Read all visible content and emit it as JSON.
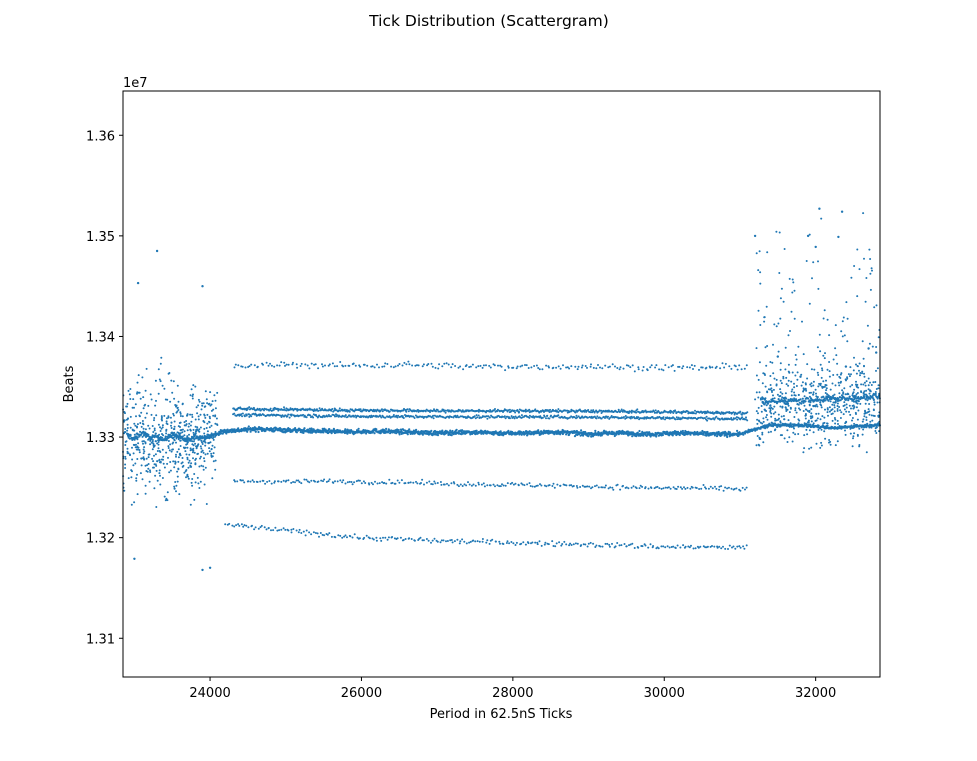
{
  "chart_data": {
    "type": "scatter",
    "title": "Tick Distribution (Scattergram)",
    "xlabel": "Period in 62.5nS Ticks",
    "ylabel": "Beats",
    "y_offset_label": "1e7",
    "xlim": [
      22850,
      32850
    ],
    "ylim": [
      13061500,
      13644000
    ],
    "x_ticks": [
      {
        "value": 24000,
        "label": "24000"
      },
      {
        "value": 26000,
        "label": "26000"
      },
      {
        "value": 28000,
        "label": "28000"
      },
      {
        "value": 30000,
        "label": "30000"
      },
      {
        "value": 32000,
        "label": "32000"
      }
    ],
    "y_ticks": [
      {
        "value": 13100000,
        "label": "1.31"
      },
      {
        "value": 13200000,
        "label": "1.32"
      },
      {
        "value": 13300000,
        "label": "1.33"
      },
      {
        "value": 13400000,
        "label": "1.34"
      },
      {
        "value": 13500000,
        "label": "1.35"
      },
      {
        "value": 13600000,
        "label": "1.36"
      }
    ],
    "marker_color": "#1f77b4",
    "grid": false,
    "series": [
      {
        "values_note_omitted": "",
        "points": [
          [
            22900,
            13302000
          ],
          [
            23000,
            13298000
          ],
          [
            23100,
            13305000
          ],
          [
            23200,
            13299000
          ],
          [
            23300,
            13301000
          ],
          [
            23400,
            13297000
          ],
          [
            23500,
            13303000
          ],
          [
            23600,
            13300000
          ],
          [
            23700,
            13296000
          ],
          [
            23800,
            13302000
          ],
          [
            23900,
            13298000
          ],
          [
            24000,
            13301000
          ],
          [
            24200,
            13306000
          ],
          [
            24600,
            13308000
          ],
          [
            25000,
            13307000
          ],
          [
            25400,
            13306000
          ],
          [
            25800,
            13305000
          ],
          [
            26200,
            13306000
          ],
          [
            26600,
            13305000
          ],
          [
            27000,
            13304000
          ],
          [
            27400,
            13305000
          ],
          [
            27800,
            13304000
          ],
          [
            28200,
            13304000
          ],
          [
            28600,
            13305000
          ],
          [
            29000,
            13303000
          ],
          [
            29400,
            13304000
          ],
          [
            29800,
            13303000
          ],
          [
            30200,
            13304000
          ],
          [
            30600,
            13303000
          ],
          [
            31000,
            13303000
          ],
          [
            31400,
            13312000
          ],
          [
            31800,
            13312000
          ],
          [
            32200,
            13309000
          ],
          [
            32600,
            13311000
          ],
          [
            32850,
            13312000
          ],
          [
            24300,
            13370000
          ],
          [
            25000,
            13372000
          ],
          [
            25800,
            13371000
          ],
          [
            26600,
            13372000
          ],
          [
            27400,
            13370000
          ],
          [
            28200,
            13370000
          ],
          [
            29000,
            13370000
          ],
          [
            29800,
            13369000
          ],
          [
            30600,
            13369000
          ],
          [
            31100,
            13370000
          ],
          [
            24300,
            13328000
          ],
          [
            25500,
            13327000
          ],
          [
            27000,
            13326000
          ],
          [
            28500,
            13326000
          ],
          [
            30000,
            13325000
          ],
          [
            31100,
            13324000
          ],
          [
            24300,
            13322000
          ],
          [
            25500,
            13321000
          ],
          [
            27000,
            13320000
          ],
          [
            28500,
            13320000
          ],
          [
            30000,
            13319000
          ],
          [
            31100,
            13318000
          ],
          [
            24300,
            13256000
          ],
          [
            25500,
            13256000
          ],
          [
            26500,
            13255000
          ],
          [
            27500,
            13253000
          ],
          [
            28500,
            13252000
          ],
          [
            29500,
            13250000
          ],
          [
            30500,
            13249000
          ],
          [
            31100,
            13248000
          ],
          [
            24200,
            13213000
          ],
          [
            25000,
            13207000
          ],
          [
            26000,
            13200000
          ],
          [
            27000,
            13197000
          ],
          [
            28000,
            13195000
          ],
          [
            29000,
            13193000
          ],
          [
            30000,
            13191000
          ],
          [
            31100,
            13190000
          ],
          [
            23300,
            13485000
          ],
          [
            23050,
            13453000
          ],
          [
            23900,
            13450000
          ],
          [
            31200,
            13500000
          ],
          [
            32050,
            13527000
          ],
          [
            32350,
            13524000
          ],
          [
            31900,
            13500000
          ],
          [
            32000,
            13489000
          ],
          [
            32300,
            13499000
          ],
          [
            23000,
            13179000
          ],
          [
            23900,
            13168000
          ],
          [
            24000,
            13170000
          ],
          [
            31500,
            13380000
          ],
          [
            31800,
            13360000
          ],
          [
            32100,
            13340000
          ],
          [
            32400,
            13370000
          ],
          [
            32700,
            13388000
          ],
          [
            31300,
            13335000
          ],
          [
            32500,
            13340000
          ],
          [
            32800,
            13384000
          ]
        ]
      }
    ]
  }
}
